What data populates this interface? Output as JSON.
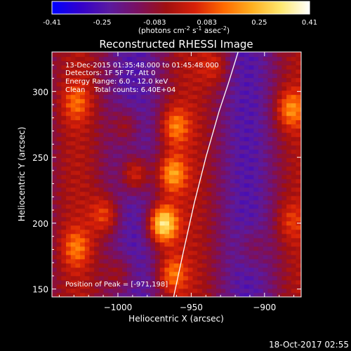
{
  "colorbar": {
    "ticks": [
      "-0.41",
      "-0.25",
      "-0.083",
      "0.083",
      "0.25",
      "0.41"
    ],
    "tick_values": [
      -0.41,
      -0.25,
      -0.083,
      0.083,
      0.25,
      0.41
    ],
    "range": [
      -0.41,
      0.41
    ],
    "units_main": "(photons cm",
    "units_sup1": "-2",
    "units_mid": " s",
    "units_sup2": "-1",
    "units_end": " asec",
    "units_sup3": "-2",
    "units_close": ")",
    "colors": [
      "#0000ff",
      "#3300cc",
      "#5a1aa0",
      "#7a1060",
      "#a01010",
      "#d82008",
      "#ff6a00",
      "#ffb020",
      "#ffe870",
      "#ffffff"
    ]
  },
  "chart_data": {
    "type": "heatmap",
    "title": "Reconstructed RHESSI Image",
    "xlabel": "Heliocentric X (arcsec)",
    "ylabel": "Heliocentric Y (arcsec)",
    "xlim": [
      -1045,
      -875
    ],
    "ylim": [
      144,
      330
    ],
    "xticks": [
      -1000,
      -950,
      -900
    ],
    "xtick_labels": [
      "−1000",
      "−950",
      "−900"
    ],
    "yticks": [
      150,
      200,
      250,
      300
    ],
    "ytick_labels": [
      "150",
      "200",
      "250",
      "300"
    ],
    "peak": {
      "x": -971,
      "y": 198,
      "value": 0.41
    },
    "limb_curve": [
      [
        -962,
        144
      ],
      [
        -955,
        180
      ],
      [
        -948,
        215
      ],
      [
        -940,
        250
      ],
      [
        -931,
        285
      ],
      [
        -925,
        305
      ],
      [
        -918,
        330
      ]
    ],
    "sources": [
      {
        "x": -971,
        "y": 198,
        "amp": 0.45
      },
      {
        "x": -990,
        "y": 236,
        "amp": 0.26
      },
      {
        "x": -965,
        "y": 236,
        "amp": 0.28
      },
      {
        "x": -963,
        "y": 272,
        "amp": 0.22
      },
      {
        "x": -996,
        "y": 272,
        "amp": 0.16
      },
      {
        "x": -1010,
        "y": 205,
        "amp": 0.2
      },
      {
        "x": -965,
        "y": 160,
        "amp": 0.22
      },
      {
        "x": -1000,
        "y": 160,
        "amp": 0.14
      },
      {
        "x": -884,
        "y": 285,
        "amp": 0.23
      },
      {
        "x": -884,
        "y": 200,
        "amp": 0.12
      },
      {
        "x": -910,
        "y": 180,
        "amp": 0.1
      },
      {
        "x": -935,
        "y": 318,
        "amp": 0.14
      },
      {
        "x": -1030,
        "y": 290,
        "amp": 0.16
      },
      {
        "x": -1030,
        "y": 180,
        "amp": 0.18
      }
    ],
    "annotations": {
      "time": "13-Dec-2015 01:35:48.000 to 01:45:48.000",
      "detectors": "Detectors: 1F 5F 7F, Att 0",
      "energy": "Energy Range: 6.0 - 12.0 keV",
      "clean": "Clean    Total counts: 6.40E+04",
      "peak_label": "Position of Peak = [-971,198]"
    }
  },
  "footer": {
    "timestamp": "18-Oct-2017 02:55"
  }
}
